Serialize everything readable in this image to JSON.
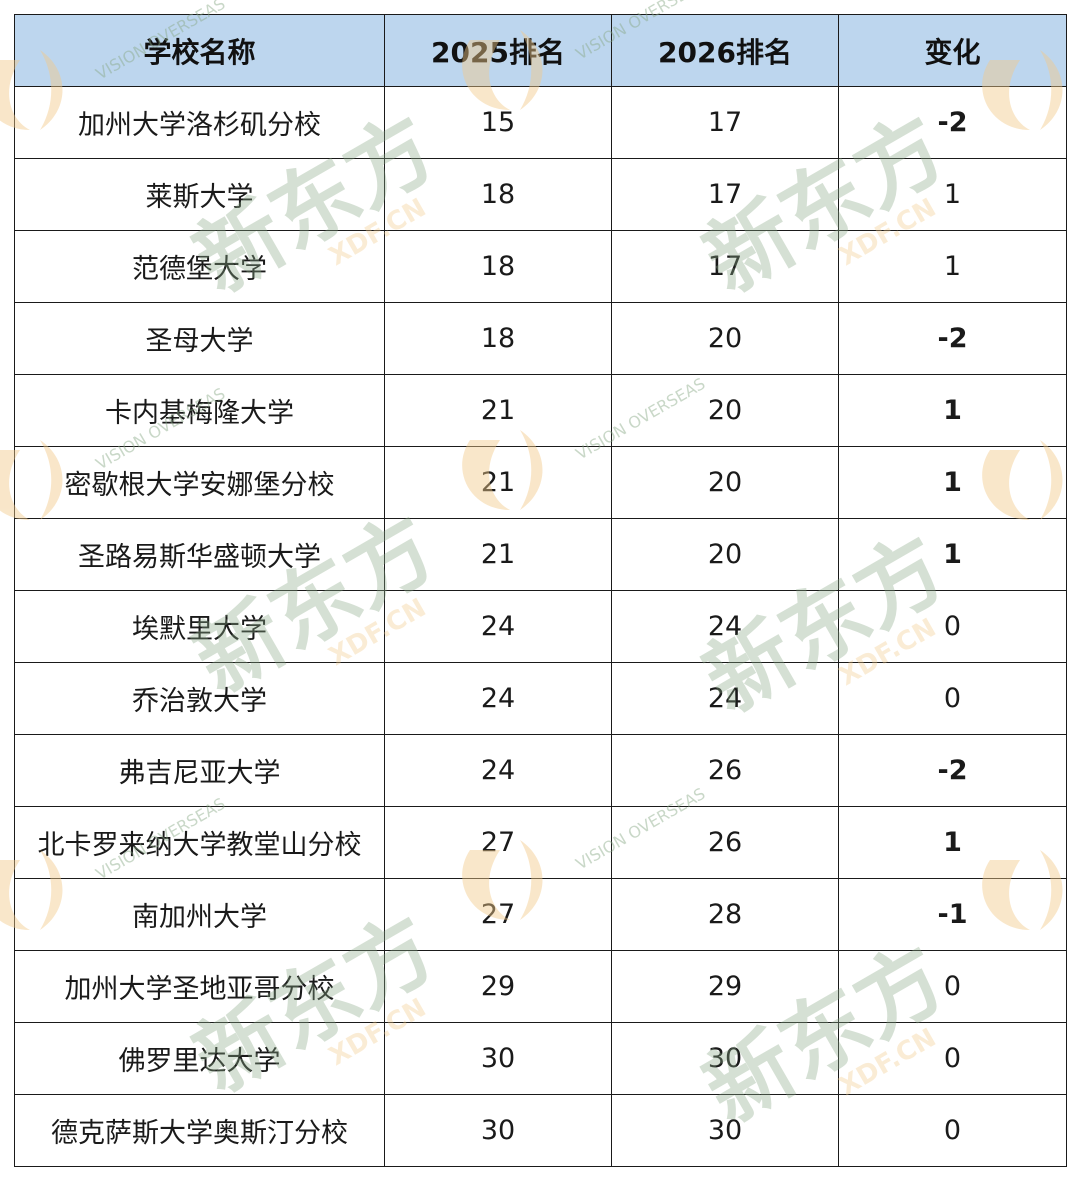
{
  "table": {
    "headers": [
      "学校名称",
      "2025排名",
      "2026排名",
      "变化"
    ],
    "rows": [
      {
        "name": "加州大学洛杉矶分校",
        "r2025": "15",
        "r2026": "17",
        "change": "-2",
        "kind": "neg"
      },
      {
        "name": "莱斯大学",
        "r2025": "18",
        "r2026": "17",
        "change": "1",
        "kind": "pos-light"
      },
      {
        "name": "范德堡大学",
        "r2025": "18",
        "r2026": "17",
        "change": "1",
        "kind": "pos-light"
      },
      {
        "name": "圣母大学",
        "r2025": "18",
        "r2026": "20",
        "change": "-2",
        "kind": "neg"
      },
      {
        "name": "卡内基梅隆大学",
        "r2025": "21",
        "r2026": "20",
        "change": "1",
        "kind": "pos"
      },
      {
        "name": "密歇根大学安娜堡分校",
        "r2025": "21",
        "r2026": "20",
        "change": "1",
        "kind": "pos"
      },
      {
        "name": "圣路易斯华盛顿大学",
        "r2025": "21",
        "r2026": "20",
        "change": "1",
        "kind": "pos"
      },
      {
        "name": "埃默里大学",
        "r2025": "24",
        "r2026": "24",
        "change": "0",
        "kind": "zero"
      },
      {
        "name": "乔治敦大学",
        "r2025": "24",
        "r2026": "24",
        "change": "0",
        "kind": "zero"
      },
      {
        "name": "弗吉尼亚大学",
        "r2025": "24",
        "r2026": "26",
        "change": "-2",
        "kind": "neg"
      },
      {
        "name": "北卡罗来纳大学教堂山分校",
        "r2025": "27",
        "r2026": "26",
        "change": "1",
        "kind": "pos"
      },
      {
        "name": "南加州大学",
        "r2025": "27",
        "r2026": "28",
        "change": "-1",
        "kind": "neg"
      },
      {
        "name": "加州大学圣地亚哥分校",
        "r2025": "29",
        "r2026": "29",
        "change": "0",
        "kind": "zero"
      },
      {
        "name": "佛罗里达大学",
        "r2025": "30",
        "r2026": "30",
        "change": "0",
        "kind": "zero"
      },
      {
        "name": "德克萨斯大学奥斯汀分校",
        "r2025": "30",
        "r2026": "30",
        "change": "0",
        "kind": "zero"
      }
    ]
  },
  "watermark": {
    "brand_text": "新东方",
    "url_text": "XDF.CN",
    "overseas_text": "VISION OVERSEAS",
    "colors": {
      "text": "#8aa987",
      "swoosh": "#f2c98a"
    }
  },
  "colors": {
    "header_bg": "#bdd6ee",
    "negative": "#e01a1a",
    "positive": "#3c7a24",
    "positive_light": "#7aa34f"
  }
}
